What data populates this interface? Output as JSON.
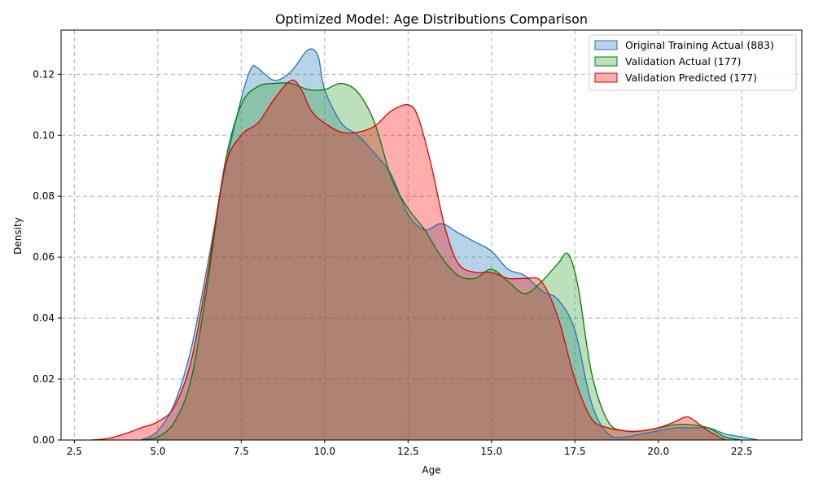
{
  "chart_data": {
    "type": "area",
    "title": "Optimized Model: Age Distributions Comparison",
    "xlabel": "Age",
    "ylabel": "Density",
    "xlim": [
      2.1,
      24.3
    ],
    "ylim": [
      0,
      0.1345
    ],
    "xticks": [
      2.5,
      5.0,
      7.5,
      10.0,
      12.5,
      15.0,
      17.5,
      20.0,
      22.5
    ],
    "xtick_labels": [
      "2.5",
      "5.0",
      "7.5",
      "10.0",
      "12.5",
      "15.0",
      "17.5",
      "20.0",
      "22.5"
    ],
    "yticks": [
      0,
      0.02,
      0.04,
      0.06,
      0.08,
      0.1,
      0.12
    ],
    "ytick_labels": [
      "0.00",
      "0.02",
      "0.04",
      "0.06",
      "0.08",
      "0.10",
      "0.12"
    ],
    "grid": true,
    "legend_position": "top-right",
    "series": [
      {
        "name": "Original Training Actual (883)",
        "line_color": "#1f77b4",
        "fill_color": "#1f77b4",
        "x": [
          4.5,
          5.0,
          5.5,
          6.0,
          6.5,
          7.0,
          7.5,
          7.8,
          8.0,
          8.5,
          9.0,
          9.5,
          9.8,
          10.0,
          10.5,
          11.0,
          11.5,
          12.0,
          12.5,
          13.0,
          13.5,
          14.0,
          14.5,
          15.0,
          15.5,
          16.0,
          16.5,
          17.0,
          17.5,
          18.0,
          18.5,
          19.0,
          19.5,
          20.0,
          20.5,
          21.0,
          21.5,
          22.0,
          22.5,
          23.0
        ],
        "y": [
          0.0,
          0.003,
          0.012,
          0.03,
          0.058,
          0.088,
          0.112,
          0.122,
          0.122,
          0.118,
          0.121,
          0.128,
          0.126,
          0.115,
          0.104,
          0.1,
          0.094,
          0.087,
          0.074,
          0.069,
          0.071,
          0.068,
          0.065,
          0.062,
          0.056,
          0.054,
          0.049,
          0.046,
          0.036,
          0.012,
          0.002,
          0.001,
          0.002,
          0.003,
          0.004,
          0.004,
          0.004,
          0.002,
          0.001,
          0.0
        ]
      },
      {
        "name": "Validation Actual (177)",
        "line_color": "#008000",
        "fill_color": "#2ca02c",
        "x": [
          4.5,
          5.0,
          5.5,
          6.0,
          6.5,
          7.0,
          7.5,
          8.0,
          8.5,
          9.0,
          9.5,
          10.0,
          10.5,
          11.0,
          11.5,
          12.0,
          12.5,
          13.0,
          13.5,
          14.0,
          14.5,
          15.0,
          15.5,
          16.0,
          16.5,
          17.0,
          17.3,
          17.6,
          18.0,
          18.5,
          19.0,
          19.5,
          20.0,
          20.5,
          21.0,
          21.5,
          22.0,
          22.5
        ],
        "y": [
          0.0,
          0.001,
          0.006,
          0.02,
          0.052,
          0.09,
          0.11,
          0.116,
          0.117,
          0.117,
          0.115,
          0.115,
          0.117,
          0.114,
          0.104,
          0.086,
          0.076,
          0.069,
          0.06,
          0.054,
          0.053,
          0.056,
          0.052,
          0.048,
          0.052,
          0.058,
          0.061,
          0.05,
          0.022,
          0.006,
          0.003,
          0.003,
          0.004,
          0.005,
          0.005,
          0.004,
          0.001,
          0.0
        ]
      },
      {
        "name": "Validation Predicted (177)",
        "line_color": "#e00000",
        "fill_color": "#ff0000",
        "x": [
          3.0,
          3.5,
          4.0,
          4.5,
          5.0,
          5.5,
          6.0,
          6.5,
          7.0,
          7.5,
          8.0,
          8.5,
          9.0,
          9.3,
          9.6,
          10.0,
          10.5,
          11.0,
          11.5,
          12.0,
          12.5,
          12.8,
          13.2,
          13.6,
          14.0,
          14.5,
          15.0,
          15.5,
          16.0,
          16.5,
          17.0,
          17.5,
          18.0,
          18.5,
          19.0,
          19.5,
          20.0,
          20.5,
          20.8,
          21.0,
          21.5,
          22.0
        ],
        "y": [
          0.0,
          0.0005,
          0.002,
          0.004,
          0.006,
          0.011,
          0.026,
          0.055,
          0.089,
          0.1,
          0.104,
          0.112,
          0.118,
          0.115,
          0.108,
          0.104,
          0.101,
          0.101,
          0.103,
          0.108,
          0.11,
          0.106,
          0.09,
          0.07,
          0.058,
          0.055,
          0.055,
          0.053,
          0.053,
          0.052,
          0.04,
          0.02,
          0.007,
          0.004,
          0.003,
          0.003,
          0.004,
          0.006,
          0.0075,
          0.007,
          0.003,
          0.0
        ]
      }
    ]
  }
}
